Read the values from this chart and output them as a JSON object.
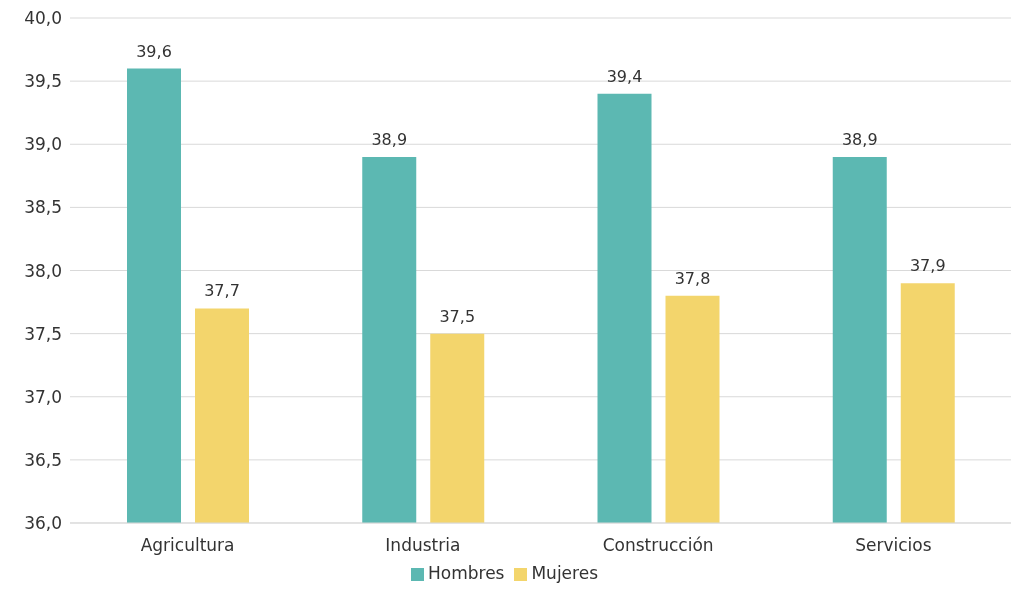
{
  "chart_data": {
    "type": "bar",
    "categories": [
      "Agricultura",
      "Industria",
      "Construcción",
      "Servicios"
    ],
    "series": [
      {
        "name": "Hombres",
        "color": "#5cb8b2",
        "values": [
          39.6,
          38.9,
          39.4,
          38.9
        ],
        "value_labels": [
          "39,6",
          "38,9",
          "39,4",
          "38,9"
        ]
      },
      {
        "name": "Mujeres",
        "color": "#f3d56c",
        "values": [
          37.7,
          37.5,
          37.8,
          37.9
        ],
        "value_labels": [
          "37,7",
          "37,5",
          "37,8",
          "37,9"
        ]
      }
    ],
    "ylim": [
      36,
      40
    ],
    "yticks": [
      {
        "value": 36,
        "label": "36,0"
      },
      {
        "value": 36.5,
        "label": "36,5"
      },
      {
        "value": 37,
        "label": "37,0"
      },
      {
        "value": 37.5,
        "label": "37,5"
      },
      {
        "value": 38,
        "label": "38,0"
      },
      {
        "value": 38.5,
        "label": "38,5"
      },
      {
        "value": 39,
        "label": "39,0"
      },
      {
        "value": 39.5,
        "label": "39,5"
      },
      {
        "value": 40,
        "label": "40,0"
      }
    ],
    "grid": "y",
    "legend": "bottom"
  }
}
